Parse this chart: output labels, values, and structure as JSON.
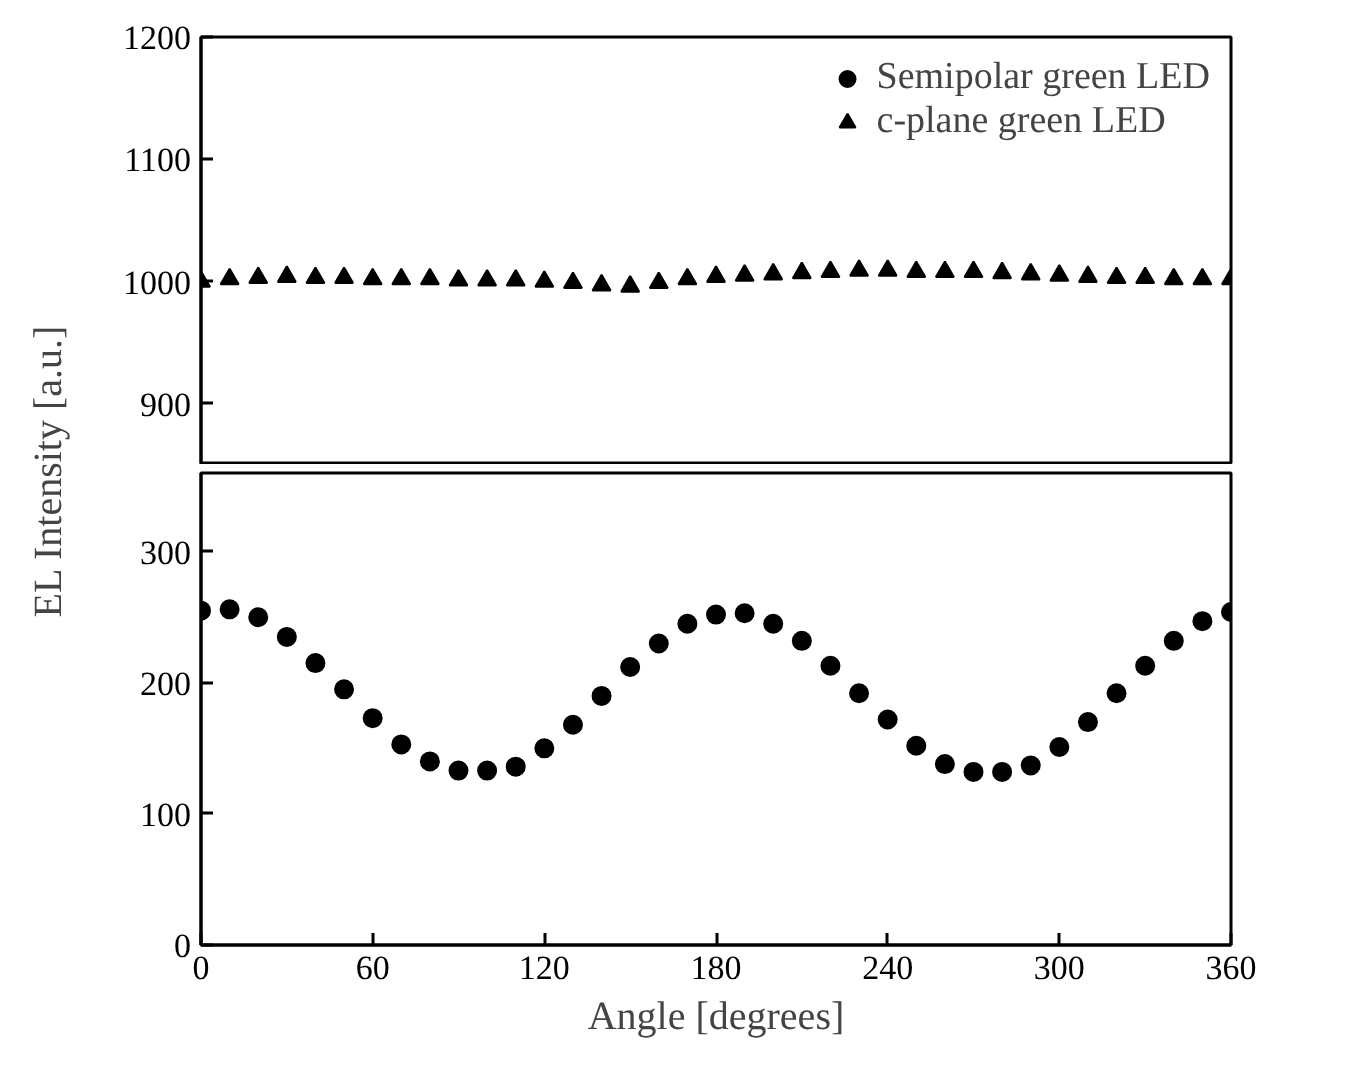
{
  "chart_data": [
    {
      "type": "scatter",
      "ylabel": "EL Intensity [a.u.]",
      "xlim": [
        0,
        360
      ],
      "ylim": [
        850,
        1200
      ],
      "xticks": [
        0,
        60,
        120,
        180,
        240,
        300,
        360
      ],
      "yticks": [
        900,
        1000,
        1100,
        1200
      ],
      "tick_labels": "y",
      "legend": "top right",
      "grid": false,
      "x": [
        0,
        10,
        20,
        30,
        40,
        50,
        60,
        70,
        80,
        90,
        100,
        110,
        120,
        130,
        140,
        150,
        160,
        170,
        180,
        190,
        200,
        210,
        220,
        230,
        240,
        250,
        260,
        270,
        280,
        290,
        300,
        310,
        320,
        330,
        340,
        350,
        360
      ],
      "series": [
        {
          "name": "c-plane green LED",
          "color": "#000000",
          "marker": "triangle",
          "values": [
            1000,
            1002,
            1003,
            1004,
            1003,
            1003,
            1002,
            1002,
            1002,
            1001,
            1001,
            1001,
            1000,
            999,
            997,
            996,
            999,
            1002,
            1004,
            1005,
            1006,
            1007,
            1008,
            1009,
            1009,
            1008,
            1008,
            1008,
            1007,
            1006,
            1005,
            1004,
            1003,
            1003,
            1002,
            1002,
            1002
          ]
        }
      ]
    },
    {
      "type": "scatter",
      "xlabel": "Angle [degrees]",
      "xlim": [
        0,
        360
      ],
      "ylim": [
        0,
        360
      ],
      "xticks": [
        0,
        60,
        120,
        180,
        240,
        300,
        360
      ],
      "yticks": [
        0,
        100,
        200,
        300
      ],
      "grid": false,
      "x": [
        0,
        10,
        20,
        30,
        40,
        50,
        60,
        70,
        80,
        90,
        100,
        110,
        120,
        130,
        140,
        150,
        160,
        170,
        180,
        190,
        200,
        210,
        220,
        230,
        240,
        250,
        260,
        270,
        280,
        290,
        300,
        310,
        320,
        330,
        340,
        350,
        360
      ],
      "series": [
        {
          "name": "Semipolar green LED",
          "color": "#000000",
          "marker": "circle",
          "values": [
            255,
            256,
            250,
            235,
            215,
            195,
            173,
            153,
            140,
            133,
            133,
            136,
            150,
            168,
            190,
            212,
            230,
            245,
            252,
            253,
            245,
            232,
            213,
            192,
            172,
            152,
            138,
            132,
            132,
            137,
            151,
            170,
            192,
            213,
            232,
            247,
            254
          ]
        }
      ]
    }
  ]
}
